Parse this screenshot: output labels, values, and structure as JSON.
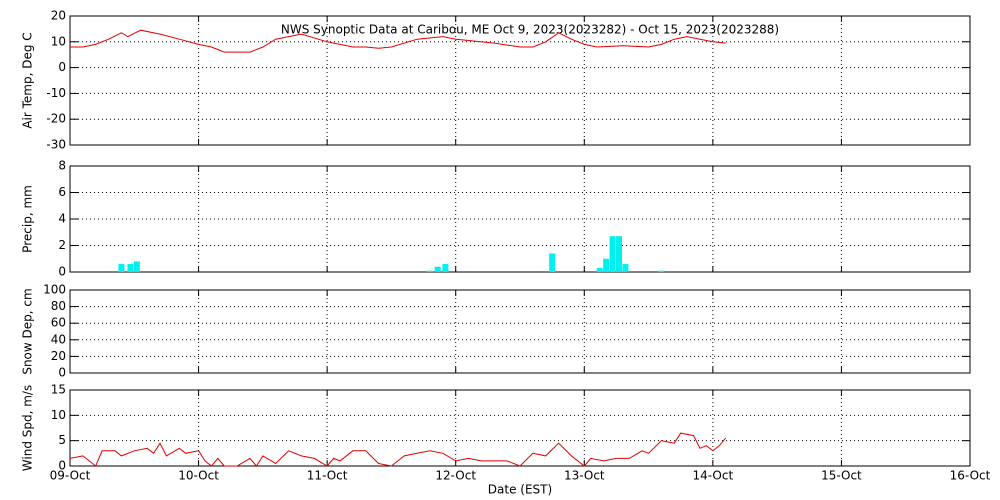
{
  "chart_data": [
    {
      "type": "line",
      "title": "NWS Synoptic Data at Caribou, ME   Oct  9, 2023(2023282) - Oct 15, 2023(2023288)",
      "ylabel": "Air Temp, Deg C",
      "color": "#e00000",
      "x": [
        0,
        0.1,
        0.2,
        0.3,
        0.4,
        0.45,
        0.55,
        0.7,
        0.85,
        1.0,
        1.1,
        1.2,
        1.3,
        1.4,
        1.5,
        1.6,
        1.7,
        1.8,
        2.0,
        2.1,
        2.2,
        2.3,
        2.4,
        2.5,
        2.7,
        2.9,
        3.0,
        3.1,
        3.3,
        3.5,
        3.6,
        3.7,
        3.8,
        3.9,
        4.0,
        4.1,
        4.3,
        4.5,
        4.6,
        4.7,
        4.8,
        4.9,
        5.0,
        5.1
      ],
      "values": [
        8,
        8,
        9,
        11,
        13.5,
        12,
        14.5,
        13,
        11,
        9,
        8,
        6,
        6,
        6,
        8,
        11,
        12,
        13,
        10,
        9,
        8,
        8,
        7.5,
        8,
        11,
        12,
        11,
        10.5,
        9.5,
        8,
        8,
        10,
        13.5,
        11,
        9,
        8,
        8.5,
        8,
        9,
        11,
        12,
        11,
        10,
        9.5
      ],
      "xlim": [
        0,
        7
      ],
      "xticks": [
        0,
        1,
        2,
        3,
        4,
        5,
        6,
        7
      ],
      "ylim": [
        -30,
        20
      ],
      "yticks": [
        -30,
        -20,
        -10,
        0,
        10,
        20
      ],
      "grid": true
    },
    {
      "type": "bar",
      "ylabel": "Precip, mm",
      "color": "#00f0f0",
      "x": [
        0.4,
        0.47,
        0.52,
        2.8,
        2.86,
        2.92,
        3.75,
        4.12,
        4.17,
        4.22,
        4.27,
        4.32,
        4.6
      ],
      "values": [
        0.6,
        0.6,
        0.8,
        0.1,
        0.4,
        0.6,
        1.4,
        0.3,
        1.0,
        2.7,
        2.7,
        0.6,
        0.1
      ],
      "xlim": [
        0,
        7
      ],
      "xticks": [
        0,
        1,
        2,
        3,
        4,
        5,
        6,
        7
      ],
      "ylim": [
        0,
        8
      ],
      "yticks": [
        0,
        2,
        4,
        6,
        8
      ],
      "grid": true
    },
    {
      "type": "line",
      "ylabel": "Snow Dep, cm",
      "color": "#e00000",
      "x": [],
      "values": [],
      "xlim": [
        0,
        7
      ],
      "xticks": [
        0,
        1,
        2,
        3,
        4,
        5,
        6,
        7
      ],
      "ylim": [
        0,
        100
      ],
      "yticks": [
        0,
        20,
        40,
        60,
        80,
        100
      ],
      "grid": true
    },
    {
      "type": "line",
      "ylabel": "Wind Spd, m/s",
      "xlabel": "Date (EST)",
      "color": "#e00000",
      "x": [
        0,
        0.1,
        0.15,
        0.2,
        0.25,
        0.35,
        0.4,
        0.5,
        0.6,
        0.65,
        0.7,
        0.75,
        0.85,
        0.9,
        1.0,
        1.05,
        1.1,
        1.15,
        1.2,
        1.3,
        1.4,
        1.45,
        1.5,
        1.6,
        1.7,
        1.8,
        1.9,
        2.0,
        2.05,
        2.1,
        2.2,
        2.3,
        2.4,
        2.5,
        2.6,
        2.7,
        2.8,
        2.9,
        3.0,
        3.1,
        3.2,
        3.3,
        3.4,
        3.5,
        3.6,
        3.7,
        3.8,
        3.9,
        4.0,
        4.05,
        4.15,
        4.25,
        4.35,
        4.45,
        4.5,
        4.6,
        4.7,
        4.75,
        4.85,
        4.9,
        4.95,
        5.0,
        5.05,
        5.1
      ],
      "values": [
        1.5,
        2,
        1,
        0,
        3,
        3,
        2,
        3,
        3.5,
        2.5,
        4.5,
        2,
        3.5,
        2.5,
        3,
        1,
        0,
        1.5,
        0,
        0,
        1.5,
        0,
        2,
        0.5,
        3,
        2,
        1.5,
        0,
        1.5,
        1,
        3,
        3,
        0.5,
        0,
        2,
        2.5,
        3,
        2.5,
        1,
        1.5,
        1,
        1,
        1,
        0,
        2.5,
        2,
        4.5,
        2,
        0,
        1.5,
        1,
        1.5,
        1.5,
        3,
        2.5,
        5,
        4.5,
        6.5,
        6,
        3.5,
        4,
        3,
        4,
        5.5
      ],
      "xlim": [
        0,
        7
      ],
      "xticks": [
        {
          "value": 0,
          "label": "09-Oct"
        },
        {
          "value": 1,
          "label": "10-Oct"
        },
        {
          "value": 2,
          "label": "11-Oct"
        },
        {
          "value": 3,
          "label": "12-Oct"
        },
        {
          "value": 4,
          "label": "13-Oct"
        },
        {
          "value": 5,
          "label": "14-Oct"
        },
        {
          "value": 6,
          "label": "15-Oct"
        },
        {
          "value": 7,
          "label": "16-Oct"
        }
      ],
      "ylim": [
        0,
        15
      ],
      "yticks": [
        0,
        5,
        10,
        15
      ],
      "grid": true
    }
  ]
}
